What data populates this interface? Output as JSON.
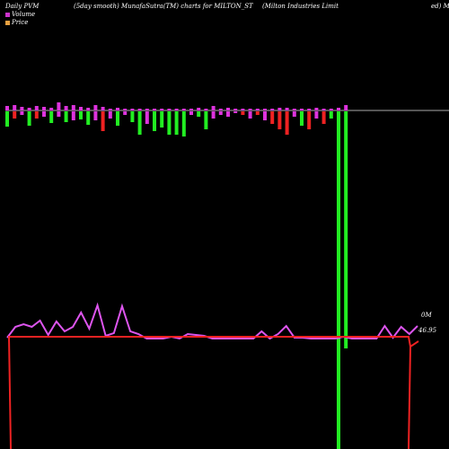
{
  "header": {
    "left": "Daily PVM",
    "mid1": "(5day smooth) MunafaSutra(TM) charts for MILTON_ST",
    "mid2": "(Milton  Industries Limit",
    "right": "ed) M"
  },
  "legend": [
    {
      "label": "Volume",
      "color": "#cc33cc"
    },
    {
      "label": "Price",
      "color": "#e8a040"
    }
  ],
  "labels": {
    "volume_value": "0M",
    "price_value": "46.95"
  },
  "colors": {
    "up": "#22ee22",
    "down": "#ee2222",
    "pvm_line": "#dd55ee",
    "baseline": "#aaaaaa"
  },
  "chart_data": {
    "type": "bar",
    "title": "Daily PVM (5day smooth) MunafaSutra(TM) charts for MILTON_ST (Milton  Industries Limited) M",
    "volume_bars": [
      {
        "dir": "up",
        "up_h": 5,
        "dn_h": 17,
        "c": "green"
      },
      {
        "dir": "up",
        "up_h": 6,
        "dn_h": 8,
        "c": "red"
      },
      {
        "dir": "up",
        "up_h": 4,
        "dn_h": 4,
        "c": "magenta"
      },
      {
        "dir": "up",
        "up_h": 3,
        "dn_h": 16,
        "c": "green"
      },
      {
        "dir": "up",
        "up_h": 5,
        "dn_h": 8,
        "c": "red"
      },
      {
        "dir": "up",
        "up_h": 4,
        "dn_h": 6,
        "c": "magenta"
      },
      {
        "dir": "up",
        "up_h": 3,
        "dn_h": 13,
        "c": "green"
      },
      {
        "dir": "up",
        "up_h": 9,
        "dn_h": 6,
        "c": "magenta"
      },
      {
        "dir": "up",
        "up_h": 5,
        "dn_h": 12,
        "c": "green"
      },
      {
        "dir": "up",
        "up_h": 6,
        "dn_h": 10,
        "c": "magenta"
      },
      {
        "dir": "up",
        "up_h": 4,
        "dn_h": 9,
        "c": "green"
      },
      {
        "dir": "up",
        "up_h": 3,
        "dn_h": 15,
        "c": "green"
      },
      {
        "dir": "up",
        "up_h": 6,
        "dn_h": 10,
        "c": "magenta"
      },
      {
        "dir": "up",
        "up_h": 4,
        "dn_h": 22,
        "c": "red"
      },
      {
        "dir": "up",
        "up_h": 2,
        "dn_h": 8,
        "c": "magenta"
      },
      {
        "dir": "up",
        "up_h": 3,
        "dn_h": 16,
        "c": "green"
      },
      {
        "dir": "up",
        "up_h": 2,
        "dn_h": 4,
        "c": "magenta"
      },
      {
        "dir": "up",
        "up_h": 2,
        "dn_h": 12,
        "c": "green"
      },
      {
        "dir": "up",
        "up_h": 2,
        "dn_h": 26,
        "c": "green"
      },
      {
        "dir": "up",
        "up_h": 2,
        "dn_h": 14,
        "c": "magenta"
      },
      {
        "dir": "up",
        "up_h": 2,
        "dn_h": 22,
        "c": "green"
      },
      {
        "dir": "up",
        "up_h": 2,
        "dn_h": 18,
        "c": "green"
      },
      {
        "dir": "up",
        "up_h": 2,
        "dn_h": 26,
        "c": "green"
      },
      {
        "dir": "up",
        "up_h": 2,
        "dn_h": 26,
        "c": "green"
      },
      {
        "dir": "up",
        "up_h": 2,
        "dn_h": 28,
        "c": "green"
      },
      {
        "dir": "up",
        "up_h": 2,
        "dn_h": 4,
        "c": "magenta"
      },
      {
        "dir": "up",
        "up_h": 3,
        "dn_h": 6,
        "c": "green"
      },
      {
        "dir": "up",
        "up_h": 2,
        "dn_h": 20,
        "c": "green"
      },
      {
        "dir": "up",
        "up_h": 5,
        "dn_h": 8,
        "c": "magenta"
      },
      {
        "dir": "up",
        "up_h": 2,
        "dn_h": 4,
        "c": "magenta"
      },
      {
        "dir": "up",
        "up_h": 3,
        "dn_h": 6,
        "c": "magenta"
      },
      {
        "dir": "up",
        "up_h": 2,
        "dn_h": 2,
        "c": "magenta"
      },
      {
        "dir": "up",
        "up_h": 2,
        "dn_h": 4,
        "c": "red"
      },
      {
        "dir": "up",
        "up_h": 2,
        "dn_h": 8,
        "c": "magenta"
      },
      {
        "dir": "up",
        "up_h": 2,
        "dn_h": 4,
        "c": "red"
      },
      {
        "dir": "up",
        "up_h": 2,
        "dn_h": 10,
        "c": "magenta"
      },
      {
        "dir": "up",
        "up_h": 2,
        "dn_h": 14,
        "c": "red"
      },
      {
        "dir": "up",
        "up_h": 3,
        "dn_h": 20,
        "c": "red"
      },
      {
        "dir": "up",
        "up_h": 3,
        "dn_h": 26,
        "c": "red"
      },
      {
        "dir": "up",
        "up_h": 2,
        "dn_h": 6,
        "c": "magenta"
      },
      {
        "dir": "up",
        "up_h": 2,
        "dn_h": 16,
        "c": "green"
      },
      {
        "dir": "up",
        "up_h": 2,
        "dn_h": 20,
        "c": "red"
      },
      {
        "dir": "up",
        "up_h": 3,
        "dn_h": 8,
        "c": "magenta"
      },
      {
        "dir": "up",
        "up_h": 2,
        "dn_h": 14,
        "c": "red"
      },
      {
        "dir": "up",
        "up_h": 2,
        "dn_h": 8,
        "c": "green"
      },
      {
        "dir": "up",
        "up_h": 3,
        "dn_h": 376,
        "c": "green"
      },
      {
        "dir": "up",
        "up_h": 6,
        "dn_h": 264,
        "c": "green"
      }
    ],
    "pvm_line": [
      376,
      364,
      361,
      364,
      357,
      373,
      358,
      369,
      364,
      348,
      366,
      340,
      374,
      371,
      341,
      369,
      372,
      377,
      377,
      377,
      375,
      377,
      372,
      373,
      374,
      377,
      377,
      377,
      377,
      377,
      377,
      369,
      377,
      372,
      363,
      376,
      376,
      377,
      377,
      377,
      377,
      375,
      377,
      377,
      377,
      377,
      363,
      376,
      364,
      372,
      363
    ],
    "price_line_flat": 375,
    "price_drop_left": true,
    "price_jump_right": true
  }
}
